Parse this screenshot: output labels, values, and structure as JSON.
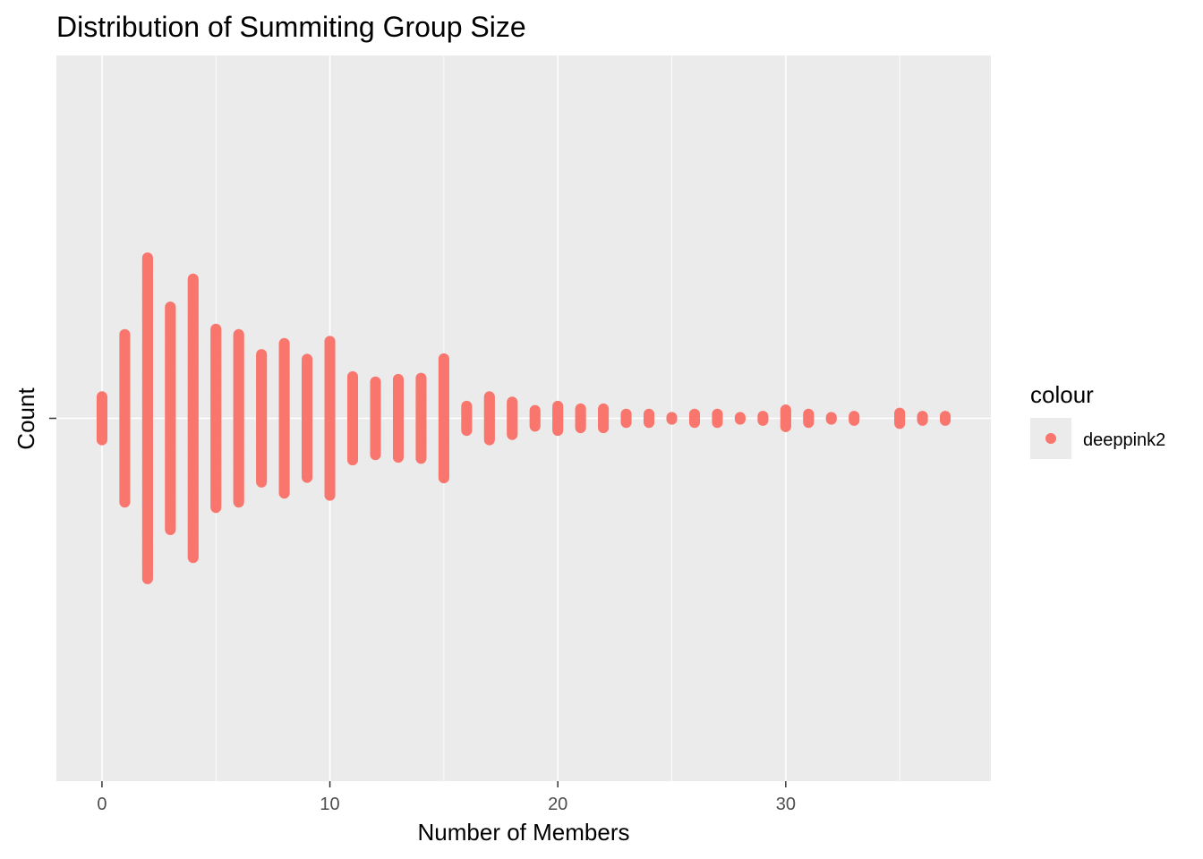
{
  "chart_data": {
    "type": "dotplot",
    "title": "Distribution of Summiting Group Size",
    "xlabel": "Number of Members",
    "ylabel": "Count",
    "xlim": [
      -2,
      39
    ],
    "x_ticks": [
      0,
      10,
      20,
      30
    ],
    "grid": true,
    "legend_position": "right",
    "legend": {
      "title": "colour",
      "entries": [
        {
          "label": "deeppink2",
          "color": "#f8766d"
        }
      ]
    },
    "point_color": "#f8766d",
    "panel_color": "#ebebeb",
    "series": [
      {
        "name": "deeppink2",
        "x": [
          0,
          1,
          2,
          3,
          4,
          5,
          6,
          7,
          8,
          9,
          10,
          11,
          12,
          13,
          14,
          15,
          16,
          17,
          18,
          19,
          20,
          21,
          22,
          23,
          24,
          25,
          26,
          27,
          28,
          29,
          30,
          31,
          32,
          33,
          35,
          36,
          37
        ],
        "counts": [
          42,
          160,
          305,
          212,
          265,
          170,
          160,
          122,
          143,
          113,
          147,
          80,
          70,
          75,
          77,
          114,
          24,
          42,
          32,
          16,
          24,
          19,
          19,
          9,
          9,
          3,
          9,
          9,
          3,
          5,
          17,
          9,
          3,
          5,
          11,
          5,
          5
        ]
      }
    ]
  }
}
